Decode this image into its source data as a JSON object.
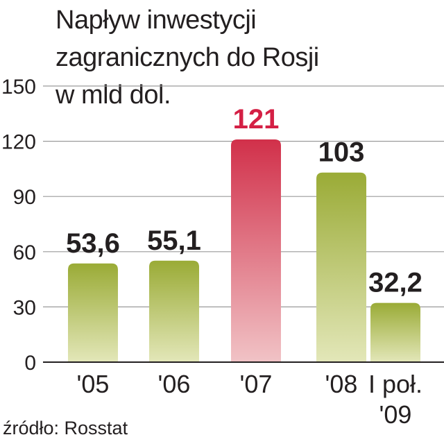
{
  "chart_data": {
    "type": "bar",
    "title": "Napływ inwestycji\nzagranicznych do Rosji\nw mld dol.",
    "categories": [
      "'05",
      "'06",
      "'07",
      "'08",
      "I poł.\n'09"
    ],
    "values": [
      53.6,
      55.1,
      121,
      103,
      32.2
    ],
    "value_labels": [
      "53,6",
      "55,1",
      "121",
      "103",
      "32,2"
    ],
    "highlight_index": 2,
    "ylim": [
      0,
      150
    ],
    "yticks": [
      0,
      30,
      60,
      90,
      120,
      150
    ],
    "grid": true,
    "xlabel": "",
    "ylabel": "",
    "source": "źródło: Rosstat",
    "colors": {
      "bar": "#9aab36",
      "bar_light": "#e3e7b9",
      "highlight": "#d1304a",
      "highlight_light": "#f1c3c6",
      "highlight_label": "#d42045",
      "label": "#231f20",
      "grid": "#9a9a9a"
    }
  }
}
